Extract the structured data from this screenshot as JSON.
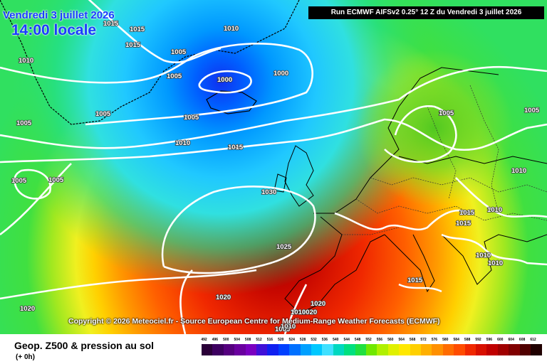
{
  "header": {
    "date_text": "Vendredi 3 juillet 2026",
    "time_text": "14:00 locale",
    "run_text": "Run ECMWF AIFSv2 0.25° 12 Z du Vendredi 3 juillet 2026"
  },
  "copyright": "Copyright © 2026 Meteociel.fr - Source European Centre for Medium-Range Weather Forecasts (ECMWF)",
  "footer": {
    "title": "Geop. Z500 & pression au sol",
    "subtitle": "(+ 0h)"
  },
  "scale": {
    "labels": [
      "492",
      "496",
      "500",
      "504",
      "508",
      "512",
      "516",
      "520",
      "524",
      "528",
      "532",
      "536",
      "540",
      "544",
      "548",
      "552",
      "556",
      "560",
      "564",
      "568",
      "572",
      "576",
      "580",
      "584",
      "588",
      "592",
      "596",
      "600",
      "604",
      "608",
      "612"
    ],
    "colors": [
      "#2a0038",
      "#3d0060",
      "#55007f",
      "#6a009f",
      "#7a00c0",
      "#4010d8",
      "#1020f0",
      "#0040ff",
      "#0070ff",
      "#00a0ff",
      "#00c8ff",
      "#40e0ff",
      "#00d8c0",
      "#00e080",
      "#20e040",
      "#70e800",
      "#b0f000",
      "#e0f000",
      "#ffe800",
      "#ffd000",
      "#ffb000",
      "#ff9000",
      "#ff6c00",
      "#ff4c00",
      "#f02800",
      "#d81000",
      "#c00000",
      "#a00000",
      "#800000",
      "#500000",
      "#200000"
    ]
  },
  "isobar_labels": [
    {
      "text": "1015"
    },
    {
      "text": "1015"
    },
    {
      "text": "1015"
    },
    {
      "text": "1010"
    },
    {
      "text": "1010"
    },
    {
      "text": "1005"
    },
    {
      "text": "1005"
    },
    {
      "text": "1000"
    },
    {
      "text": "1000"
    },
    {
      "text": "1005"
    },
    {
      "text": "1005"
    },
    {
      "text": "1005"
    },
    {
      "text": "1010"
    },
    {
      "text": "1015"
    },
    {
      "text": "1005"
    },
    {
      "text": "1005"
    },
    {
      "text": "1005"
    },
    {
      "text": "1005"
    },
    {
      "text": "1010"
    },
    {
      "text": "1030"
    },
    {
      "text": "1015"
    },
    {
      "text": "1010"
    },
    {
      "text": "1015"
    },
    {
      "text": "1025"
    },
    {
      "text": "1010"
    },
    {
      "text": "1010"
    },
    {
      "text": "1015"
    },
    {
      "text": "1020"
    },
    {
      "text": "1020"
    },
    {
      "text": "1020"
    },
    {
      "text": "1020"
    },
    {
      "text": "1010"
    },
    {
      "text": "1005"
    },
    {
      "text": "1010"
    }
  ]
}
